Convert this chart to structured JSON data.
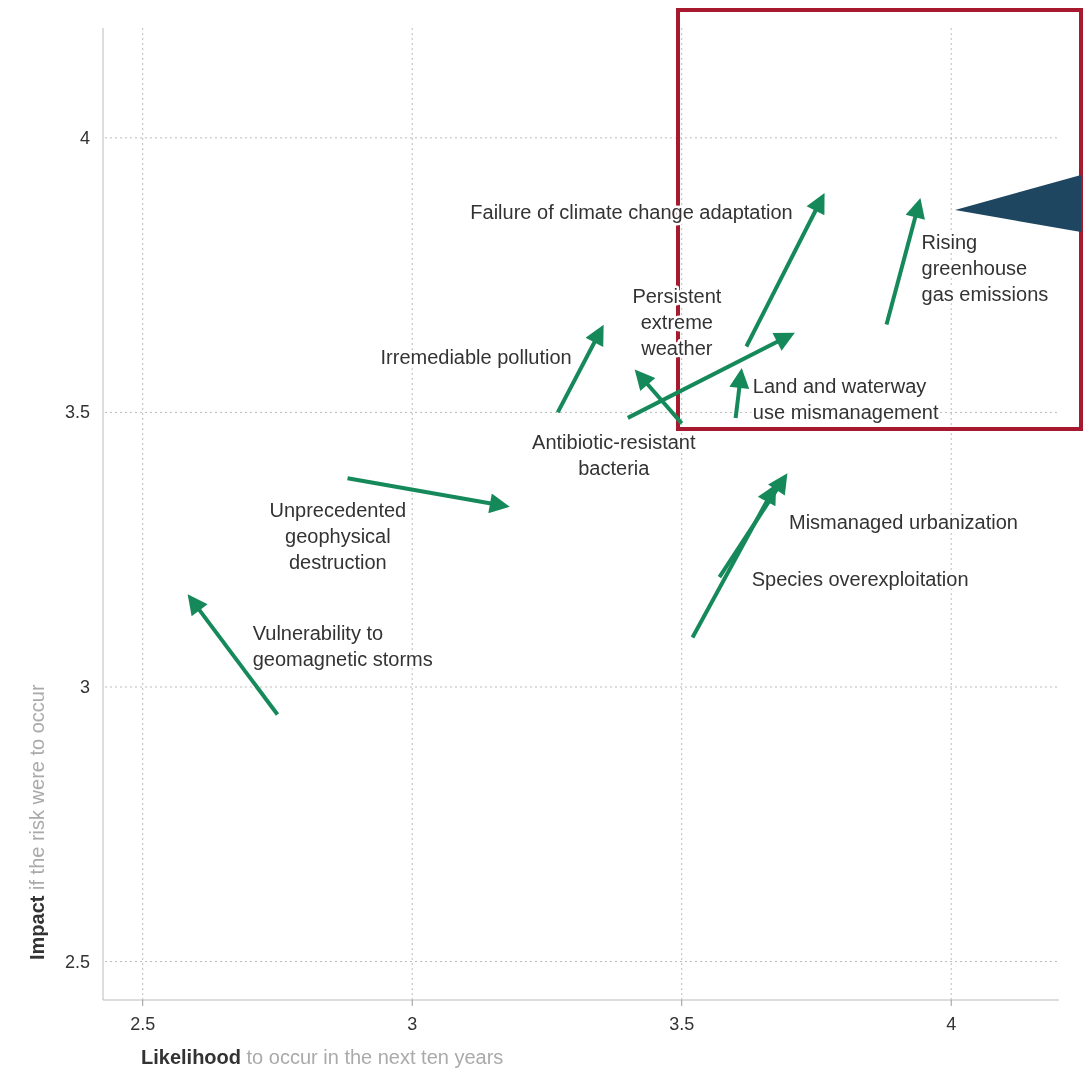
{
  "chart_data": {
    "type": "line",
    "xlabel": "Likelihood to occur in the next ten years",
    "ylabel": "Impact if the risk were to occur",
    "xlim": [
      2.43,
      4.2
    ],
    "ylim": [
      2.43,
      4.2
    ],
    "xticks": [
      2.5,
      3,
      3.5,
      4
    ],
    "yticks": [
      2.5,
      3,
      3.5,
      4
    ],
    "grid": true,
    "marker": "none",
    "series": [
      {
        "name": "Failure of climate change adaptation",
        "color": "#16895b",
        "x": [
          3.62,
          3.76
        ],
        "values": [
          3.62,
          3.89
        ]
      },
      {
        "name": "Rising greenhouse gas emissions",
        "color": "#16895b",
        "x": [
          3.88,
          3.94
        ],
        "values": [
          3.66,
          3.88
        ]
      },
      {
        "name": "Persistent extreme weather",
        "color": "#16895b",
        "x": [
          3.4,
          3.7
        ],
        "values": [
          3.49,
          3.64
        ]
      },
      {
        "name": "Irremediable pollution",
        "color": "#16895b",
        "x": [
          3.27,
          3.35
        ],
        "values": [
          3.5,
          3.65
        ]
      },
      {
        "name": "Land and waterway use mismanagement",
        "color": "#16895b",
        "x": [
          3.6,
          3.61
        ],
        "values": [
          3.49,
          3.57
        ]
      },
      {
        "name": "Antibiotic-resistant bacteria",
        "color": "#16895b",
        "x": [
          3.5,
          3.42
        ],
        "values": [
          3.48,
          3.57
        ]
      },
      {
        "name": "Unprecedented geophysical destruction",
        "color": "#16895b",
        "x": [
          2.88,
          3.17
        ],
        "values": [
          3.38,
          3.33
        ]
      },
      {
        "name": "Vulnerability to geomagnetic storms",
        "color": "#16895b",
        "x": [
          2.75,
          2.59
        ],
        "values": [
          2.95,
          3.16
        ]
      },
      {
        "name": "Mismanaged urbanization",
        "color": "#16895b",
        "x": [
          3.57,
          3.69
        ],
        "values": [
          3.2,
          3.38
        ]
      },
      {
        "name": "Species overexploitation",
        "color": "#16895b",
        "x": [
          3.52,
          3.67
        ],
        "values": [
          3.09,
          3.36
        ]
      }
    ]
  }
}
